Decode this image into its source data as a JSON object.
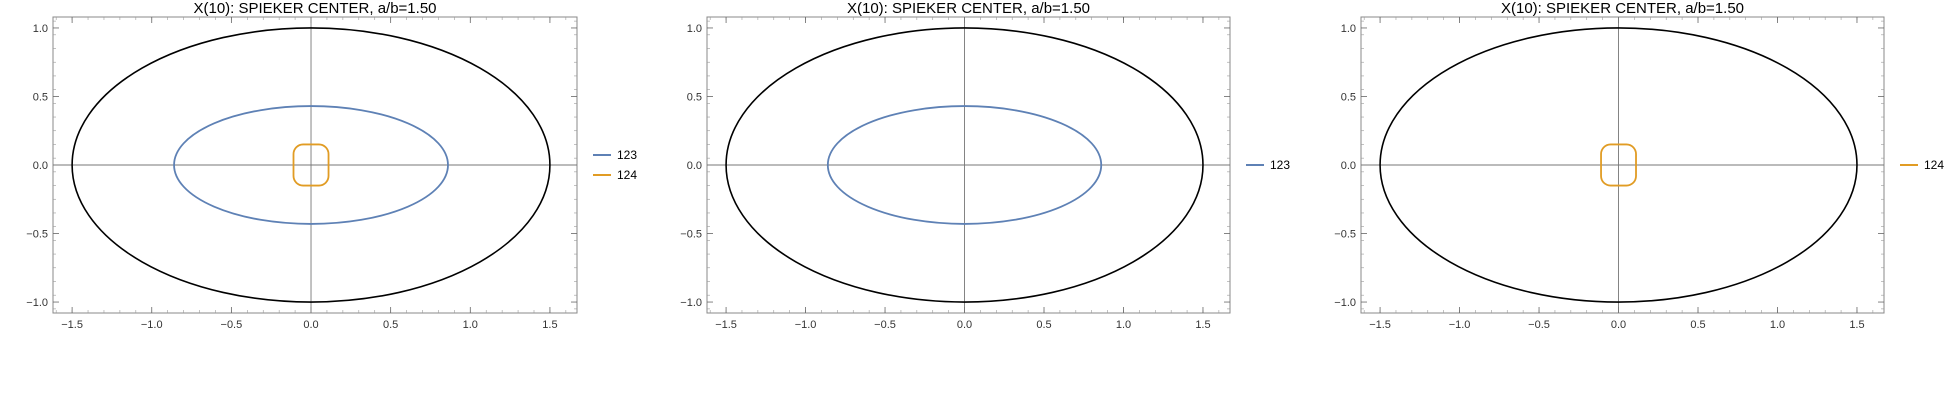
{
  "chart_data": [
    {
      "type": "line",
      "title": "X(10): SPIEKER CENTER, a/b=1.50",
      "xlabel": "",
      "ylabel": "",
      "xlim": [
        -1.62,
        1.67
      ],
      "ylim": [
        -1.08,
        1.08
      ],
      "xticks": [
        -1.5,
        -1.0,
        -0.5,
        0.0,
        0.5,
        1.0,
        1.5
      ],
      "xtick_labels": [
        "−1.5",
        "−1.0",
        "−0.5",
        "0.0",
        "0.5",
        "1.0",
        "1.5"
      ],
      "yticks": [
        -1.0,
        -0.5,
        0.0,
        0.5,
        1.0
      ],
      "ytick_labels": [
        "−1.0",
        "−0.5",
        "0.0",
        "0.5",
        "1.0"
      ],
      "grid": false,
      "legend_position": "right",
      "outer_ellipse": {
        "a": 1.5,
        "b": 1.0,
        "color": "#000000"
      },
      "series": [
        {
          "name": "123",
          "color": "#5E81B5",
          "shape": "ellipse",
          "a": 0.86,
          "b": 0.43
        },
        {
          "name": "124",
          "color": "#E19C24",
          "shape": "rounded-rect",
          "half_width": 0.11,
          "half_height": 0.15
        }
      ]
    },
    {
      "type": "line",
      "title": "X(10): SPIEKER CENTER, a/b=1.50",
      "xlabel": "",
      "ylabel": "",
      "xlim": [
        -1.62,
        1.67
      ],
      "ylim": [
        -1.08,
        1.08
      ],
      "xticks": [
        -1.5,
        -1.0,
        -0.5,
        0.0,
        0.5,
        1.0,
        1.5
      ],
      "xtick_labels": [
        "−1.5",
        "−1.0",
        "−0.5",
        "0.0",
        "0.5",
        "1.0",
        "1.5"
      ],
      "yticks": [
        -1.0,
        -0.5,
        0.0,
        0.5,
        1.0
      ],
      "ytick_labels": [
        "−1.0",
        "−0.5",
        "0.0",
        "0.5",
        "1.0"
      ],
      "grid": false,
      "legend_position": "right",
      "outer_ellipse": {
        "a": 1.5,
        "b": 1.0,
        "color": "#000000"
      },
      "series": [
        {
          "name": "123",
          "color": "#5E81B5",
          "shape": "ellipse",
          "a": 0.86,
          "b": 0.43
        }
      ]
    },
    {
      "type": "line",
      "title": "X(10): SPIEKER CENTER, a/b=1.50",
      "xlabel": "",
      "ylabel": "",
      "xlim": [
        -1.62,
        1.67
      ],
      "ylim": [
        -1.08,
        1.08
      ],
      "xticks": [
        -1.5,
        -1.0,
        -0.5,
        0.0,
        0.5,
        1.0,
        1.5
      ],
      "xtick_labels": [
        "−1.5",
        "−1.0",
        "−0.5",
        "0.0",
        "0.5",
        "1.0",
        "1.5"
      ],
      "yticks": [
        -1.0,
        -0.5,
        0.0,
        0.5,
        1.0
      ],
      "ytick_labels": [
        "−1.0",
        "−0.5",
        "0.0",
        "0.5",
        "1.0"
      ],
      "grid": false,
      "legend_position": "right",
      "outer_ellipse": {
        "a": 1.5,
        "b": 1.0,
        "color": "#000000"
      },
      "series": [
        {
          "name": "124",
          "color": "#E19C24",
          "shape": "rounded-rect",
          "half_width": 0.11,
          "half_height": 0.15
        }
      ]
    }
  ]
}
